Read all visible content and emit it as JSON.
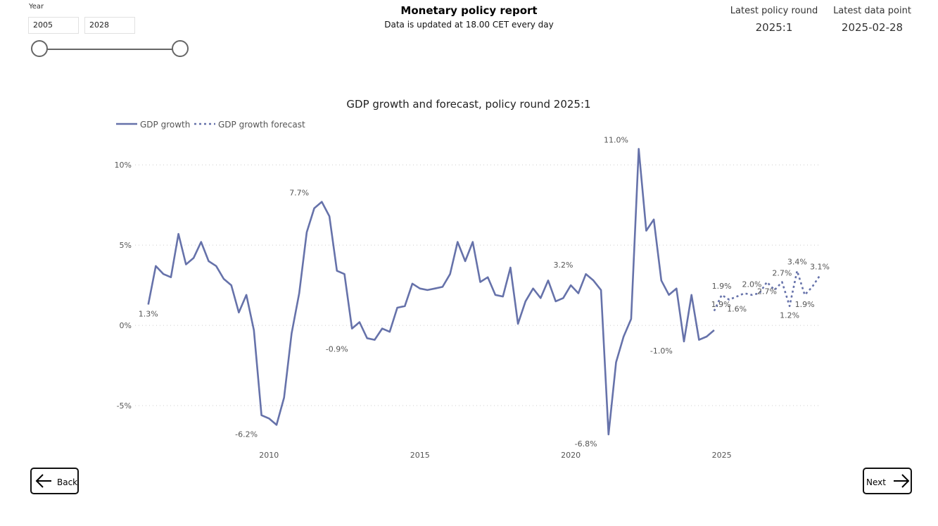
{
  "header": {
    "title": "Monetary policy report",
    "subtitle": "Data is updated at 18.00 CET every day"
  },
  "slicer": {
    "title": "Year",
    "start": "2005",
    "end": "2028",
    "range_fraction": [
      0,
      1
    ]
  },
  "kpis": [
    {
      "label": "Latest policy round",
      "value": "2025:1"
    },
    {
      "label": "Latest data point",
      "value": "2025-02-28"
    }
  ],
  "nav": {
    "back_label": "Back",
    "next_label": "Next"
  },
  "colors": {
    "series": "#6672aa",
    "grid": "#cccccc",
    "text": "#555555"
  },
  "chart_data": {
    "type": "line",
    "title": "GDP growth and forecast, policy round 2025:1",
    "xlabel": "",
    "ylabel": "",
    "xlim": [
      2005.75,
      2028.25
    ],
    "ylim": [
      -7.5,
      11.5
    ],
    "y_ticks": [
      {
        "value": 10,
        "label": "10%"
      },
      {
        "value": 5,
        "label": "5%"
      },
      {
        "value": 0,
        "label": "0%"
      },
      {
        "value": -5,
        "label": "-5%"
      }
    ],
    "x_ticks": [
      {
        "value": 2010,
        "label": "2010"
      },
      {
        "value": 2015,
        "label": "2015"
      },
      {
        "value": 2020,
        "label": "2020"
      },
      {
        "value": 2025,
        "label": "2025"
      }
    ],
    "grid": true,
    "legend": "top-left",
    "series": [
      {
        "name": "GDP growth",
        "style": "solid",
        "x": [
          2006.0,
          2006.25,
          2006.5,
          2006.75,
          2007.0,
          2007.25,
          2007.5,
          2007.75,
          2008.0,
          2008.25,
          2008.5,
          2008.75,
          2009.0,
          2009.25,
          2009.5,
          2009.75,
          2010.0,
          2010.25,
          2010.5,
          2010.75,
          2011.0,
          2011.25,
          2011.5,
          2011.75,
          2012.0,
          2012.25,
          2012.5,
          2012.75,
          2013.0,
          2013.25,
          2013.5,
          2013.75,
          2014.0,
          2014.25,
          2014.5,
          2014.75,
          2015.0,
          2015.25,
          2015.5,
          2015.75,
          2016.0,
          2016.25,
          2016.5,
          2016.75,
          2017.0,
          2017.25,
          2017.5,
          2017.75,
          2018.0,
          2018.25,
          2018.5,
          2018.75,
          2019.0,
          2019.25,
          2019.5,
          2019.75,
          2020.0,
          2020.25,
          2020.5,
          2020.75,
          2021.0,
          2021.25,
          2021.5,
          2021.75,
          2022.0,
          2022.25,
          2022.5,
          2022.75,
          2023.0,
          2023.25,
          2023.5,
          2023.75,
          2024.0,
          2024.25,
          2024.5,
          2024.75
        ],
        "y": [
          1.3,
          3.7,
          3.2,
          3.0,
          5.7,
          3.8,
          4.2,
          5.2,
          4.0,
          3.7,
          2.9,
          2.5,
          0.8,
          1.9,
          -0.3,
          -5.6,
          -5.8,
          -6.2,
          -4.5,
          -0.5,
          2.0,
          5.8,
          7.3,
          7.7,
          6.8,
          3.4,
          3.2,
          -0.2,
          0.2,
          -0.8,
          -0.9,
          -0.2,
          -0.4,
          1.1,
          1.2,
          2.6,
          2.3,
          2.2,
          2.3,
          2.4,
          3.2,
          5.2,
          4.0,
          5.2,
          2.7,
          3.0,
          1.9,
          1.8,
          3.6,
          0.1,
          1.5,
          2.3,
          1.7,
          2.8,
          1.5,
          1.7,
          2.5,
          2.0,
          3.2,
          2.8,
          2.2,
          -6.8,
          -2.3,
          -0.7,
          0.4,
          11.0,
          5.9,
          6.6,
          2.8,
          1.9,
          2.3,
          -1.0,
          1.9,
          -0.9,
          -0.7,
          -0.3
        ]
      },
      {
        "name": "GDP growth forecast",
        "style": "dashed",
        "x": [
          2024.75,
          2025.0,
          2025.25,
          2025.5,
          2025.75,
          2026.0,
          2026.25,
          2026.5,
          2026.75,
          2027.0,
          2027.25,
          2027.5,
          2027.75,
          2028.0,
          2028.25
        ],
        "y": [
          0.9,
          1.9,
          1.6,
          1.8,
          2.0,
          1.9,
          2.0,
          2.7,
          2.2,
          2.7,
          1.2,
          3.4,
          1.9,
          2.4,
          3.1
        ]
      }
    ],
    "annotations": [
      {
        "x": 2006.0,
        "y": 1.3,
        "label": "1.3%",
        "pos": "below"
      },
      {
        "x": 2009.25,
        "y": -6.2,
        "label": "-6.2%",
        "pos": "below"
      },
      {
        "x": 2011.0,
        "y": 7.7,
        "label": "7.7%",
        "pos": "above"
      },
      {
        "x": 2012.25,
        "y": -0.9,
        "label": "-0.9%",
        "pos": "below"
      },
      {
        "x": 2019.75,
        "y": 3.2,
        "label": "3.2%",
        "pos": "above"
      },
      {
        "x": 2020.5,
        "y": -6.8,
        "label": "-6.8%",
        "pos": "below"
      },
      {
        "x": 2021.5,
        "y": 11.0,
        "label": "11.0%",
        "pos": "above"
      },
      {
        "x": 2023.0,
        "y": -1.0,
        "label": "-1.0%",
        "pos": "below"
      },
      {
        "x": 2025.0,
        "y": 1.9,
        "label": "1.9%",
        "pos": "above"
      },
      {
        "x": 2025.0,
        "y": 1.9,
        "label": "1.9%",
        "pos": "below-left"
      },
      {
        "x": 2025.5,
        "y": 1.6,
        "label": "1.6%",
        "pos": "below"
      },
      {
        "x": 2026.0,
        "y": 2.0,
        "label": "2.0%",
        "pos": "above"
      },
      {
        "x": 2026.5,
        "y": 2.7,
        "label": "2.7%",
        "pos": "below"
      },
      {
        "x": 2027.0,
        "y": 2.7,
        "label": "2.7%",
        "pos": "above"
      },
      {
        "x": 2027.25,
        "y": 1.2,
        "label": "1.2%",
        "pos": "below"
      },
      {
        "x": 2027.5,
        "y": 3.4,
        "label": "3.4%",
        "pos": "above"
      },
      {
        "x": 2027.75,
        "y": 1.9,
        "label": "1.9%",
        "pos": "below"
      },
      {
        "x": 2028.25,
        "y": 3.1,
        "label": "3.1%",
        "pos": "above"
      }
    ]
  }
}
